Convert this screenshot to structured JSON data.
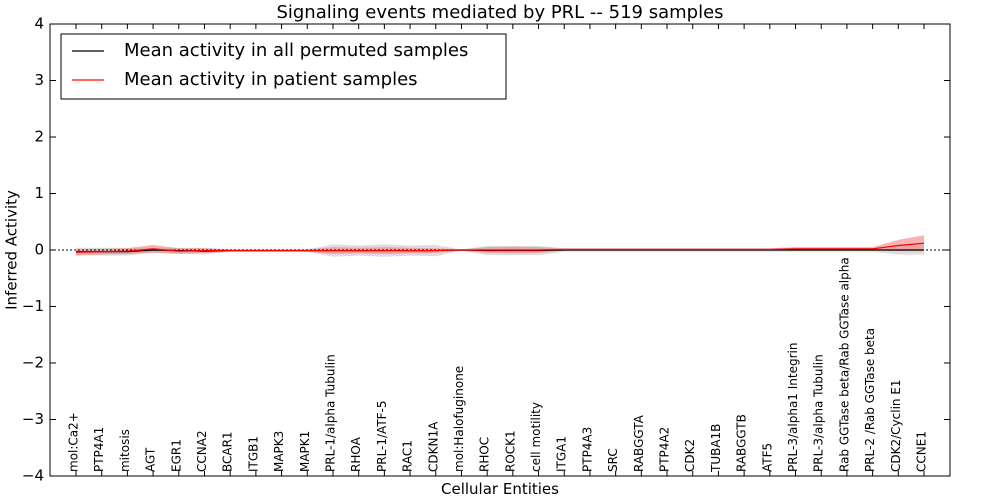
{
  "chart_data": {
    "type": "line",
    "title": "Signaling events mediated by PRL -- 519 samples",
    "xlabel": "Cellular Entities",
    "ylabel": "Inferred Activity",
    "ylim": [
      -4,
      4
    ],
    "yticks": [
      -4,
      -3,
      -2,
      -1,
      0,
      1,
      2,
      3,
      4
    ],
    "ytick_labels": [
      "−4",
      "−3",
      "−2",
      "−1",
      "0",
      "1",
      "2",
      "3",
      "4"
    ],
    "grid": false,
    "legend_position": "top-left",
    "categories": [
      "mol:Ca2+",
      "PTP4A1",
      "mitosis",
      "AGT",
      "EGR1",
      "CCNA2",
      "BCAR1",
      "ITGB1",
      "MAPK3",
      "MAPK1",
      "PRL-1/alpha Tubulin",
      "RHOA",
      "PRL-1/ATF-5",
      "RAC1",
      "CDKN1A",
      "mol:Halofuginone",
      "RHOC",
      "ROCK1",
      "cell motility",
      "ITGA1",
      "PTP4A3",
      "SRC",
      "RABGGTA",
      "PTP4A2",
      "CDK2",
      "TUBA1B",
      "RABGGTB",
      "ATF5",
      "PRL-3/alpha1 Integrin",
      "PRL-3/alpha Tubulin",
      "Rab GGTase beta/Rab GGTase alpha",
      "PRL-2 /Rab GGTase beta",
      "CDK2/Cyclin E1",
      "CCNE1"
    ],
    "series": [
      {
        "name": "Mean activity in all permuted samples",
        "color": "#000000",
        "band_color": "#bbbbbb",
        "values": [
          -0.03,
          -0.03,
          -0.03,
          0.0,
          -0.01,
          -0.02,
          -0.01,
          -0.01,
          -0.01,
          -0.01,
          -0.01,
          -0.01,
          -0.01,
          -0.01,
          -0.01,
          0.0,
          -0.01,
          -0.01,
          -0.01,
          0.0,
          0.0,
          0.0,
          0.0,
          0.0,
          0.0,
          0.0,
          0.0,
          0.0,
          0.0,
          0.0,
          0.0,
          0.0,
          0.0,
          0.0
        ],
        "band": [
          0.07,
          0.07,
          0.07,
          0.04,
          0.05,
          0.06,
          0.02,
          0.02,
          0.02,
          0.02,
          0.11,
          0.09,
          0.11,
          0.09,
          0.1,
          0.01,
          0.08,
          0.08,
          0.08,
          0.03,
          0.03,
          0.03,
          0.03,
          0.03,
          0.03,
          0.03,
          0.03,
          0.03,
          0.03,
          0.03,
          0.03,
          0.03,
          0.08,
          0.08
        ]
      },
      {
        "name": "Mean activity in patient samples",
        "color": "#ff0000",
        "band_color": "#f08080",
        "values": [
          -0.04,
          -0.03,
          -0.02,
          0.02,
          -0.02,
          -0.01,
          -0.01,
          -0.01,
          -0.01,
          -0.01,
          -0.01,
          -0.01,
          -0.01,
          -0.01,
          -0.01,
          0.0,
          0.0,
          0.0,
          0.0,
          0.01,
          0.01,
          0.01,
          0.01,
          0.01,
          0.01,
          0.01,
          0.01,
          0.01,
          0.02,
          0.02,
          0.02,
          0.02,
          0.08,
          0.12
        ],
        "band": [
          0.05,
          0.05,
          0.05,
          0.07,
          0.05,
          0.04,
          0.02,
          0.02,
          0.02,
          0.02,
          0.06,
          0.05,
          0.06,
          0.05,
          0.04,
          0.01,
          0.05,
          0.06,
          0.05,
          0.02,
          0.02,
          0.02,
          0.02,
          0.02,
          0.02,
          0.02,
          0.02,
          0.02,
          0.03,
          0.03,
          0.03,
          0.03,
          0.1,
          0.14
        ]
      }
    ]
  }
}
